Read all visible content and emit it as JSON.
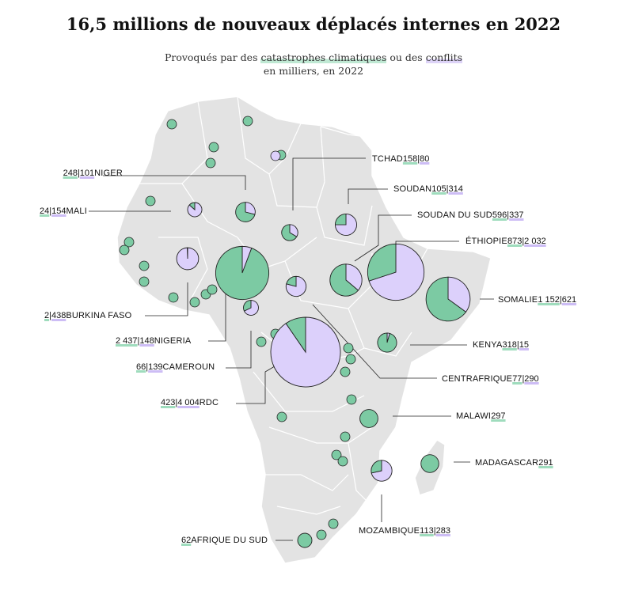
{
  "title": "16,5 millions de nouveaux déplacés internes en 2022",
  "subtitle": {
    "prefix": "Provoqués par des ",
    "climate": "catastrophes climatiques",
    "middle": " ou des ",
    "conflict": "conflits",
    "line2": "en milliers, en 2022"
  },
  "colors": {
    "climate": "#7ccaa3",
    "conflict": "#dcd0fb",
    "map": "#e3e3e3",
    "border": "#ffffff",
    "stroke": "#222222"
  },
  "chart_data": {
    "type": "pie",
    "units": "milliers",
    "series_meaning": [
      "catastrophes climatiques",
      "conflits"
    ],
    "countries": [
      {
        "name": "NIGER",
        "climate": "248",
        "conflict": "101"
      },
      {
        "name": "MALI",
        "climate": "24",
        "conflict": "154"
      },
      {
        "name": "TCHAD",
        "climate": "158",
        "conflict": "80"
      },
      {
        "name": "SOUDAN",
        "climate": "105",
        "conflict": "314"
      },
      {
        "name": "SOUDAN DU SUD",
        "climate": "596",
        "conflict": "337"
      },
      {
        "name": "ÉTHIOPIE",
        "climate": "873",
        "conflict": "2 032"
      },
      {
        "name": "SOMALIE",
        "climate": "1 152",
        "conflict": "621"
      },
      {
        "name": "KENYA",
        "climate": "318",
        "conflict": "15"
      },
      {
        "name": "CENTRAFRIQUE",
        "climate": "77",
        "conflict": "290"
      },
      {
        "name": "MALAWI",
        "climate": "297",
        "conflict": null
      },
      {
        "name": "MADAGASCAR",
        "climate": "291",
        "conflict": null
      },
      {
        "name": "MOZAMBIQUE",
        "climate": "113",
        "conflict": "283"
      },
      {
        "name": "AFRIQUE DU SUD",
        "climate": "62",
        "conflict": null
      },
      {
        "name": "RDC",
        "climate": "423",
        "conflict": "4 004"
      },
      {
        "name": "CAMEROUN",
        "climate": "66",
        "conflict": "139"
      },
      {
        "name": "NIGERIA",
        "climate": "2 437",
        "conflict": "148"
      },
      {
        "name": "BURKINA FASO",
        "climate": "2",
        "conflict": "438"
      }
    ]
  }
}
